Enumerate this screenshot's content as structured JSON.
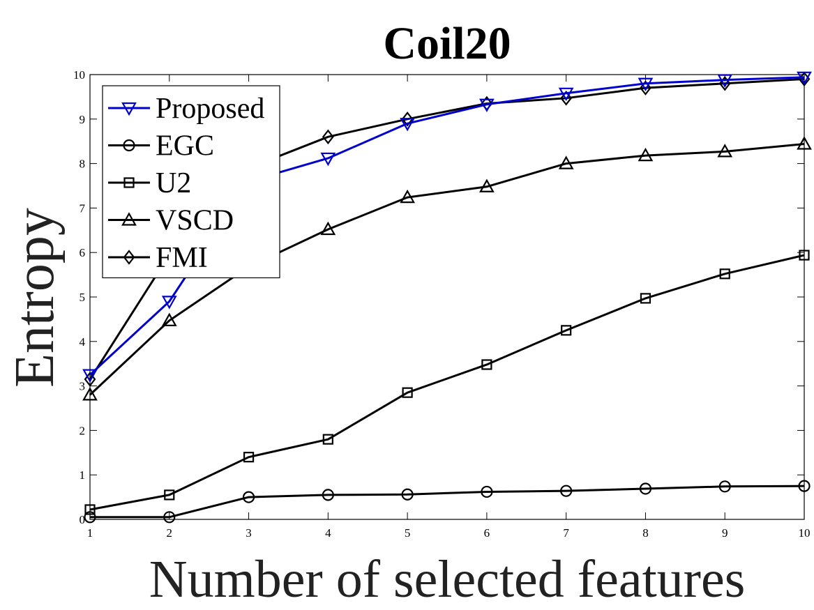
{
  "chart_data": {
    "type": "line",
    "title": "Coil20",
    "xlabel": "Number of selected features",
    "ylabel": "Entropy",
    "x": [
      1,
      2,
      3,
      4,
      5,
      6,
      7,
      8,
      9,
      10
    ],
    "xlim": [
      1,
      10
    ],
    "ylim": [
      0,
      10
    ],
    "xticks": [
      "1",
      "2",
      "3",
      "4",
      "5",
      "6",
      "7",
      "8",
      "9",
      "10"
    ],
    "yticks": [
      "0",
      "1",
      "2",
      "3",
      "4",
      "5",
      "6",
      "7",
      "8",
      "9",
      "10"
    ],
    "grid": false,
    "legend_position": "top-left",
    "series": [
      {
        "name": "Proposed",
        "marker": "triangle-down",
        "color": "#0000cc",
        "values": [
          3.25,
          4.9,
          7.6,
          8.12,
          8.9,
          9.33,
          9.58,
          9.8,
          9.88,
          9.94
        ]
      },
      {
        "name": "EGC",
        "marker": "circle",
        "color": "#000000",
        "values": [
          0.05,
          0.05,
          0.5,
          0.55,
          0.56,
          0.62,
          0.64,
          0.69,
          0.74,
          0.75
        ]
      },
      {
        "name": "U2",
        "marker": "square",
        "color": "#000000",
        "values": [
          0.22,
          0.55,
          1.4,
          1.8,
          2.85,
          3.48,
          4.25,
          4.97,
          5.52,
          5.94
        ]
      },
      {
        "name": "VSCD",
        "marker": "triangle-up",
        "color": "#000000",
        "values": [
          2.8,
          4.47,
          5.68,
          6.52,
          7.24,
          7.48,
          8.0,
          8.18,
          8.27,
          8.44
        ]
      },
      {
        "name": "FMI",
        "marker": "diamond",
        "color": "#000000",
        "values": [
          3.15,
          5.95,
          7.9,
          8.6,
          9.0,
          9.35,
          9.47,
          9.7,
          9.8,
          9.9
        ]
      }
    ]
  }
}
